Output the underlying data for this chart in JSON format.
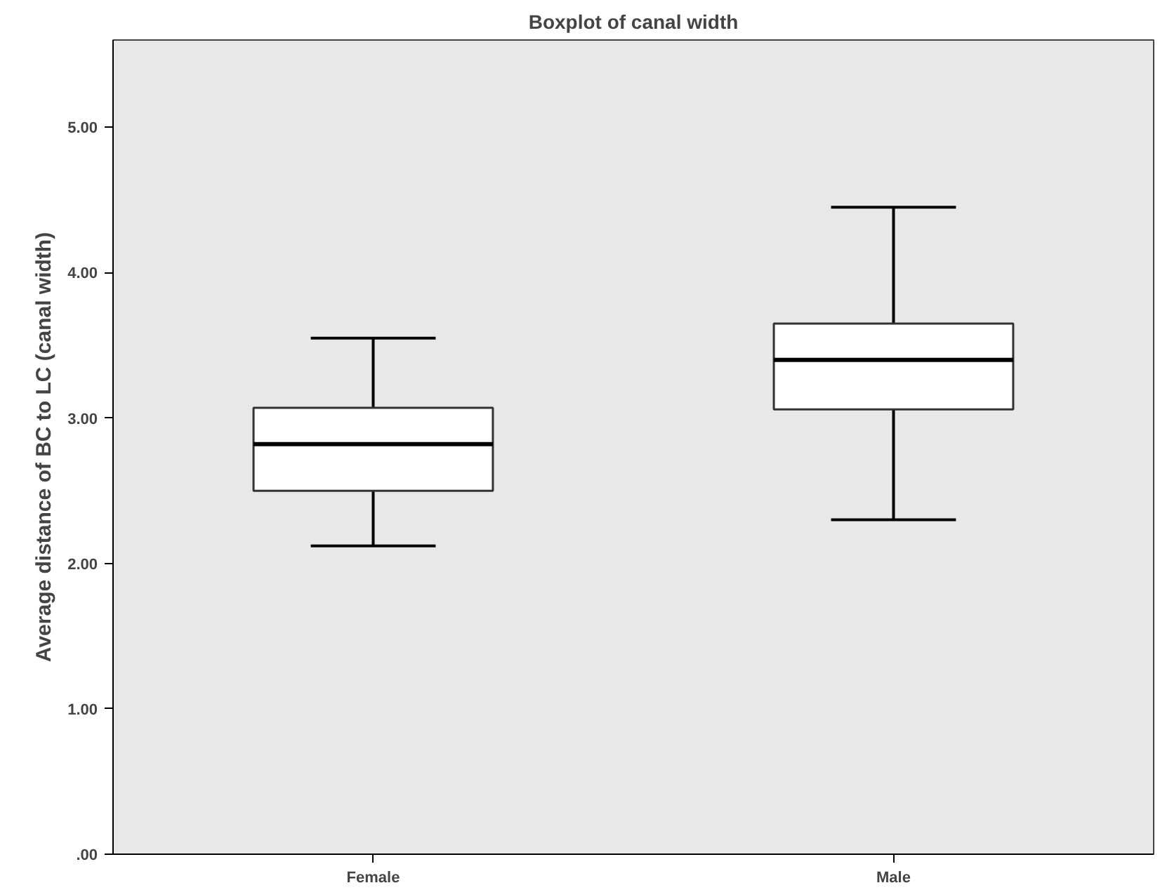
{
  "chart_data": {
    "type": "box",
    "title": "Boxplot of canal width",
    "ylabel": "Average distance of BC to LC (canal width)",
    "categories": [
      "Female",
      "Male"
    ],
    "boxes": [
      {
        "low": 2.12,
        "q1": 2.5,
        "median": 2.82,
        "q3": 3.07,
        "high": 3.55
      },
      {
        "low": 2.3,
        "q1": 3.06,
        "median": 3.4,
        "q3": 3.65,
        "high": 4.45
      }
    ],
    "ylim": [
      0,
      5.6
    ],
    "yticks": [
      {
        "value": 0,
        "label": ".00"
      },
      {
        "value": 1,
        "label": "1.00"
      },
      {
        "value": 2,
        "label": "2.00"
      },
      {
        "value": 3,
        "label": "3.00"
      },
      {
        "value": 4,
        "label": "4.00"
      },
      {
        "value": 5,
        "label": "5.00"
      }
    ],
    "grid": false
  }
}
